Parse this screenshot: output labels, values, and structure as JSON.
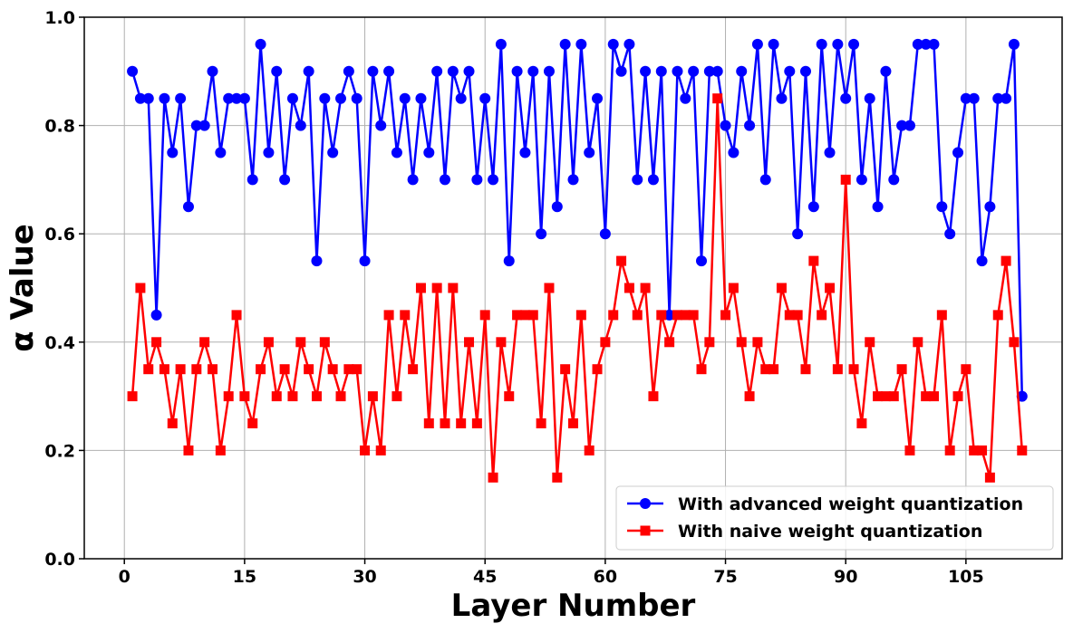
{
  "chart_data": {
    "type": "line",
    "xlabel": "Layer Number",
    "ylabel": "α Value",
    "xlim": [
      -5,
      117
    ],
    "ylim": [
      0.0,
      1.0
    ],
    "xticks": [
      0,
      15,
      30,
      45,
      60,
      75,
      90,
      105
    ],
    "yticks": [
      0.0,
      0.2,
      0.4,
      0.6,
      0.8,
      1.0
    ],
    "xtick_labels": [
      "0",
      "15",
      "30",
      "45",
      "60",
      "75",
      "90",
      "105"
    ],
    "ytick_labels": [
      "0.0",
      "0.2",
      "0.4",
      "0.6",
      "0.8",
      "1.0"
    ],
    "grid": true,
    "legend_position": "lower-right",
    "x": [
      1,
      2,
      3,
      4,
      5,
      6,
      7,
      8,
      9,
      10,
      11,
      12,
      13,
      14,
      15,
      16,
      17,
      18,
      19,
      20,
      21,
      22,
      23,
      24,
      25,
      26,
      27,
      28,
      29,
      30,
      31,
      32,
      33,
      34,
      35,
      36,
      37,
      38,
      39,
      40,
      41,
      42,
      43,
      44,
      45,
      46,
      47,
      48,
      49,
      50,
      51,
      52,
      53,
      54,
      55,
      56,
      57,
      58,
      59,
      60,
      61,
      62,
      63,
      64,
      65,
      66,
      67,
      68,
      69,
      70,
      71,
      72,
      73,
      74,
      75,
      76,
      77,
      78,
      79,
      80,
      81,
      82,
      83,
      84,
      85,
      86,
      87,
      88,
      89,
      90,
      91,
      92,
      93,
      94,
      95,
      96,
      97,
      98,
      99,
      100,
      101,
      102,
      103,
      104,
      105,
      106,
      107,
      108,
      109,
      110,
      111,
      112
    ],
    "series": [
      {
        "name": "With advanced weight quantization",
        "color": "#0000ff",
        "marker": "circle",
        "values": [
          0.9,
          0.85,
          0.85,
          0.45,
          0.85,
          0.75,
          0.85,
          0.65,
          0.8,
          0.8,
          0.9,
          0.75,
          0.85,
          0.85,
          0.85,
          0.7,
          0.95,
          0.75,
          0.9,
          0.7,
          0.85,
          0.8,
          0.9,
          0.55,
          0.85,
          0.75,
          0.85,
          0.9,
          0.85,
          0.55,
          0.9,
          0.8,
          0.9,
          0.75,
          0.85,
          0.7,
          0.85,
          0.75,
          0.9,
          0.7,
          0.9,
          0.85,
          0.9,
          0.7,
          0.85,
          0.7,
          0.95,
          0.55,
          0.9,
          0.75,
          0.9,
          0.6,
          0.9,
          0.65,
          0.95,
          0.7,
          0.95,
          0.75,
          0.85,
          0.6,
          0.95,
          0.9,
          0.95,
          0.7,
          0.9,
          0.7,
          0.9,
          0.45,
          0.9,
          0.85,
          0.9,
          0.55,
          0.9,
          0.9,
          0.8,
          0.75,
          0.9,
          0.8,
          0.95,
          0.7,
          0.95,
          0.85,
          0.9,
          0.6,
          0.9,
          0.65,
          0.95,
          0.75,
          0.95,
          0.85,
          0.95,
          0.7,
          0.85,
          0.65,
          0.9,
          0.7,
          0.8,
          0.8,
          0.95,
          0.95,
          0.95,
          0.65,
          0.6,
          0.75,
          0.85,
          0.85,
          0.55,
          0.65,
          0.85,
          0.85,
          0.95,
          0.3
        ]
      },
      {
        "name": "With naive weight quantization",
        "color": "#ff0000",
        "marker": "square",
        "values": [
          0.3,
          0.5,
          0.35,
          0.4,
          0.35,
          0.25,
          0.35,
          0.2,
          0.35,
          0.4,
          0.35,
          0.2,
          0.3,
          0.45,
          0.3,
          0.25,
          0.35,
          0.4,
          0.3,
          0.35,
          0.3,
          0.4,
          0.35,
          0.3,
          0.4,
          0.35,
          0.3,
          0.35,
          0.35,
          0.2,
          0.3,
          0.2,
          0.45,
          0.3,
          0.45,
          0.35,
          0.5,
          0.25,
          0.5,
          0.25,
          0.5,
          0.25,
          0.4,
          0.25,
          0.45,
          0.15,
          0.4,
          0.3,
          0.45,
          0.45,
          0.45,
          0.25,
          0.5,
          0.15,
          0.35,
          0.25,
          0.45,
          0.2,
          0.35,
          0.4,
          0.45,
          0.55,
          0.5,
          0.45,
          0.5,
          0.3,
          0.45,
          0.4,
          0.45,
          0.45,
          0.45,
          0.35,
          0.4,
          0.85,
          0.45,
          0.5,
          0.4,
          0.3,
          0.4,
          0.35,
          0.35,
          0.5,
          0.45,
          0.45,
          0.35,
          0.55,
          0.45,
          0.5,
          0.35,
          0.7,
          0.35,
          0.25,
          0.4,
          0.3,
          0.3,
          0.3,
          0.35,
          0.2,
          0.4,
          0.3,
          0.3,
          0.45,
          0.2,
          0.3,
          0.35,
          0.2,
          0.2,
          0.15,
          0.45,
          0.55,
          0.4,
          0.2
        ]
      }
    ]
  }
}
